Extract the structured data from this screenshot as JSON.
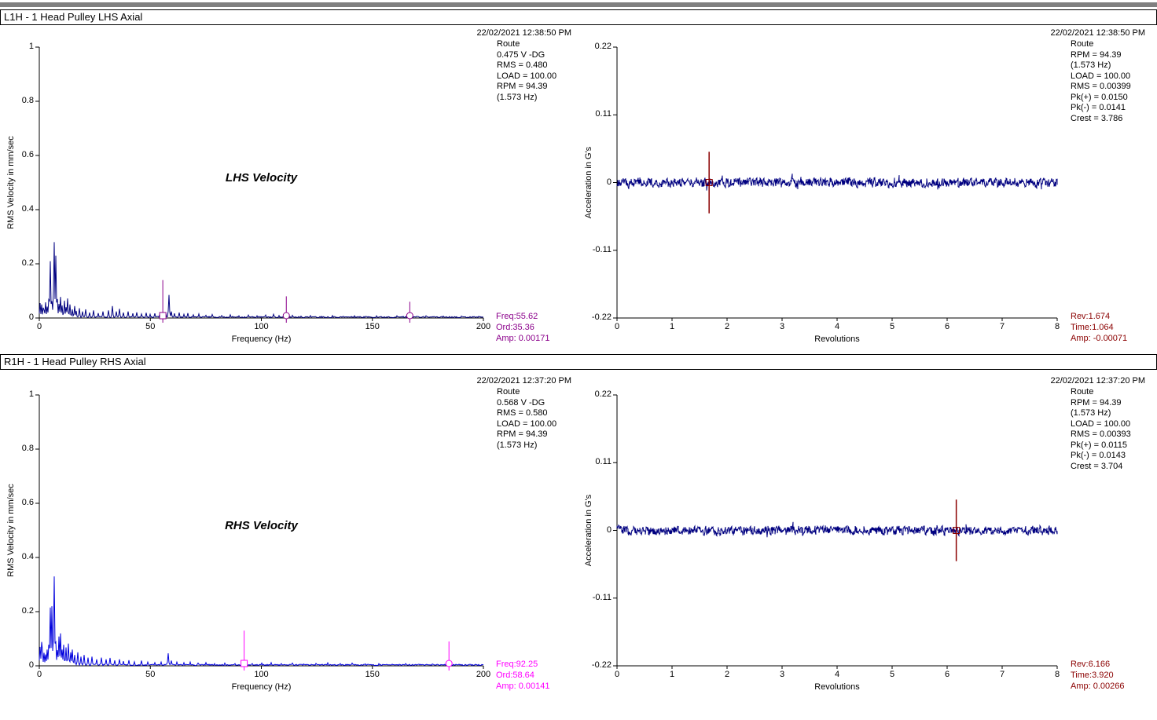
{
  "app": {
    "panels": [
      {
        "title": "L1H - 1 Head Pulley LHS Axial"
      },
      {
        "title": "R1H - 1 Head Pulley RHS Axial"
      }
    ]
  },
  "colors": {
    "spectrum_top_series": "#000080",
    "spectrum_bottom_series": "#0000DD",
    "waveform_series": "#000080",
    "cursor_top_left": "#8B008B",
    "cursor_bottom_left": "#FF00FF",
    "cursor_right": "#8B0000",
    "top_strip": "#808080"
  },
  "chart_data": [
    {
      "id": "lhs-velocity-spectrum",
      "type": "line",
      "kind": "spectrum",
      "panel": 0,
      "title": "LHS Velocity",
      "date": "22/02/2021 12:38:50 PM",
      "annotation": [
        "Route",
        "0.475 V -DG",
        "RMS = 0.480",
        "LOAD = 100.00",
        "RPM = 94.39",
        "(1.573 Hz)"
      ],
      "xlabel": "Frequency (Hz)",
      "ylabel": "RMS Velocity in mm/sec",
      "xlim": [
        0,
        200
      ],
      "ylim": [
        0,
        1
      ],
      "xticks": [
        0,
        50,
        100,
        150,
        200
      ],
      "yticks": [
        0,
        0.2,
        0.4,
        0.6,
        0.8,
        1
      ],
      "grid": false,
      "series_color": "#000080",
      "cursor_color": "#8B008B",
      "cursor_readout": [
        "Freq:55.62",
        "Ord:35.36",
        "Amp: 0.00171"
      ],
      "cursors": [
        {
          "x": 55.62,
          "marker": "square",
          "line_top": 0.14
        },
        {
          "x": 111.24,
          "marker": "circle",
          "line_top": 0.08
        },
        {
          "x": 166.86,
          "marker": "circle",
          "line_top": 0.06
        }
      ],
      "peaks": [
        [
          0.4,
          0.055
        ],
        [
          1,
          0.05
        ],
        [
          1.6,
          0.038
        ],
        [
          2.2,
          0.03
        ],
        [
          3,
          0.058
        ],
        [
          3.6,
          0.042
        ],
        [
          4.3,
          0.068
        ],
        [
          5.1,
          0.21
        ],
        [
          5.7,
          0.062
        ],
        [
          6.3,
          0.1
        ],
        [
          6.9,
          0.28
        ],
        [
          7.5,
          0.23
        ],
        [
          8.1,
          0.07
        ],
        [
          8.8,
          0.052
        ],
        [
          9.6,
          0.078
        ],
        [
          10.4,
          0.046
        ],
        [
          11.2,
          0.064
        ],
        [
          12,
          0.04
        ],
        [
          12.9,
          0.072
        ],
        [
          13.8,
          0.05
        ],
        [
          14.8,
          0.032
        ],
        [
          15.8,
          0.044
        ],
        [
          16.8,
          0.026
        ],
        [
          18,
          0.036
        ],
        [
          19.4,
          0.024
        ],
        [
          21,
          0.032
        ],
        [
          22.6,
          0.02
        ],
        [
          24.4,
          0.028
        ],
        [
          26.4,
          0.018
        ],
        [
          28.6,
          0.024
        ],
        [
          31,
          0.028
        ],
        [
          33,
          0.044
        ],
        [
          34.6,
          0.024
        ],
        [
          36.2,
          0.034
        ],
        [
          38,
          0.02
        ],
        [
          40,
          0.024
        ],
        [
          42,
          0.017
        ],
        [
          44,
          0.021
        ],
        [
          46,
          0.015
        ],
        [
          48,
          0.019
        ],
        [
          50,
          0.014
        ],
        [
          52,
          0.017
        ],
        [
          54,
          0.012
        ],
        [
          55.6,
          0.014
        ],
        [
          57,
          0.018
        ],
        [
          58.4,
          0.085
        ],
        [
          59.6,
          0.024
        ],
        [
          61,
          0.017
        ],
        [
          63,
          0.02
        ],
        [
          65,
          0.014
        ],
        [
          67,
          0.018
        ],
        [
          69.5,
          0.012
        ],
        [
          72,
          0.015
        ],
        [
          75,
          0.01
        ],
        [
          78,
          0.013
        ],
        [
          82,
          0.009
        ],
        [
          86,
          0.012
        ],
        [
          90,
          0.008
        ],
        [
          94,
          0.011
        ],
        [
          98,
          0.008
        ],
        [
          102,
          0.011
        ],
        [
          105.5,
          0.014
        ],
        [
          108,
          0.009
        ],
        [
          111.2,
          0.008
        ],
        [
          114,
          0.01
        ],
        [
          118,
          0.007
        ],
        [
          122,
          0.009
        ],
        [
          127,
          0.006
        ],
        [
          132,
          0.009
        ],
        [
          137,
          0.006
        ],
        [
          142,
          0.008
        ],
        [
          147,
          0.006
        ],
        [
          152,
          0.008
        ],
        [
          157,
          0.005
        ],
        [
          161,
          0.008
        ],
        [
          164,
          0.006
        ],
        [
          166.9,
          0.009
        ],
        [
          170,
          0.006
        ],
        [
          174,
          0.008
        ],
        [
          178,
          0.005
        ],
        [
          182,
          0.007
        ],
        [
          186,
          0.005
        ],
        [
          190,
          0.007
        ],
        [
          194,
          0.005
        ],
        [
          198,
          0.006
        ]
      ],
      "noise_base": 0.005,
      "noise_seed": 11
    },
    {
      "id": "lhs-acceleration-waveform",
      "type": "line",
      "kind": "waveform",
      "panel": 0,
      "title": "",
      "date": "22/02/2021 12:38:50 PM",
      "annotation": [
        "Route",
        "RPM = 94.39",
        "(1.573 Hz)",
        "LOAD = 100.00",
        "RMS = 0.00399",
        "Pk(+) = 0.0150",
        "Pk(-) = 0.0141",
        "Crest = 3.786"
      ],
      "xlabel": "Revolutions",
      "ylabel": "Acceleration in G's",
      "xlim": [
        0,
        8
      ],
      "ylim": [
        -0.22,
        0.22
      ],
      "xticks": [
        0,
        1,
        2,
        3,
        4,
        5,
        6,
        7,
        8
      ],
      "yticks": [
        -0.22,
        -0.11,
        0,
        0.11,
        0.22
      ],
      "grid": false,
      "series_color": "#000080",
      "cursor_color": "#8B0000",
      "cursor_readout": [
        "Rev:1.674",
        "Time:1.064",
        "Amp: -0.00071"
      ],
      "cursor": {
        "x": 1.674,
        "marker": "square",
        "span": 0.05
      },
      "noise_amp": 0.01,
      "noise_seed": 23
    },
    {
      "id": "rhs-velocity-spectrum",
      "type": "line",
      "kind": "spectrum",
      "panel": 1,
      "title": "RHS Velocity",
      "date": "22/02/2021 12:37:20 PM",
      "annotation": [
        "Route",
        "0.568 V -DG",
        "RMS = 0.580",
        "LOAD = 100.00",
        "RPM = 94.39",
        "(1.573 Hz)"
      ],
      "xlabel": "Frequency (Hz)",
      "ylabel": "RMS Velocity in mm/sec",
      "xlim": [
        0,
        200
      ],
      "ylim": [
        0,
        1
      ],
      "xticks": [
        0,
        50,
        100,
        150,
        200
      ],
      "yticks": [
        0,
        0.2,
        0.4,
        0.6,
        0.8,
        1
      ],
      "grid": false,
      "series_color": "#0000DD",
      "cursor_color": "#FF00FF",
      "cursor_readout": [
        "Freq:92.25",
        "Ord:58.64",
        "Amp: 0.00141"
      ],
      "cursors": [
        {
          "x": 92.25,
          "marker": "square",
          "line_top": 0.13
        },
        {
          "x": 184.5,
          "marker": "circle",
          "line_top": 0.09
        }
      ],
      "peaks": [
        [
          0.4,
          0.07
        ],
        [
          0.9,
          0.088
        ],
        [
          1.5,
          0.058
        ],
        [
          2.1,
          0.048
        ],
        [
          2.8,
          0.042
        ],
        [
          3.5,
          0.06
        ],
        [
          4.2,
          0.078
        ],
        [
          5,
          0.215
        ],
        [
          5.7,
          0.22
        ],
        [
          6.2,
          0.1
        ],
        [
          6.8,
          0.33
        ],
        [
          7.4,
          0.088
        ],
        [
          8,
          0.058
        ],
        [
          8.7,
          0.108
        ],
        [
          9.5,
          0.12
        ],
        [
          10.3,
          0.06
        ],
        [
          11.1,
          0.078
        ],
        [
          12,
          0.068
        ],
        [
          13,
          0.082
        ],
        [
          14,
          0.05
        ],
        [
          15,
          0.06
        ],
        [
          16.1,
          0.04
        ],
        [
          17.4,
          0.05
        ],
        [
          18.8,
          0.034
        ],
        [
          20.3,
          0.04
        ],
        [
          22,
          0.03
        ],
        [
          23.8,
          0.034
        ],
        [
          25.8,
          0.024
        ],
        [
          27.8,
          0.03
        ],
        [
          30,
          0.024
        ],
        [
          32,
          0.029
        ],
        [
          34,
          0.02
        ],
        [
          36,
          0.024
        ],
        [
          38,
          0.017
        ],
        [
          40.5,
          0.021
        ],
        [
          43,
          0.015
        ],
        [
          46,
          0.019
        ],
        [
          49,
          0.014
        ],
        [
          52,
          0.012
        ],
        [
          55,
          0.014
        ],
        [
          58,
          0.046
        ],
        [
          59.6,
          0.019
        ],
        [
          62,
          0.014
        ],
        [
          65,
          0.012
        ],
        [
          68,
          0.014
        ],
        [
          71.5,
          0.01
        ],
        [
          75,
          0.012
        ],
        [
          79,
          0.008
        ],
        [
          83.5,
          0.01
        ],
        [
          88,
          0.008
        ],
        [
          92.3,
          0.01
        ],
        [
          96,
          0.008
        ],
        [
          100,
          0.01
        ],
        [
          104.5,
          0.012
        ],
        [
          109,
          0.008
        ],
        [
          114,
          0.01
        ],
        [
          119,
          0.007
        ],
        [
          124.5,
          0.009
        ],
        [
          130,
          0.011
        ],
        [
          135.5,
          0.008
        ],
        [
          141,
          0.01
        ],
        [
          147,
          0.007
        ],
        [
          153,
          0.008
        ],
        [
          159,
          0.006
        ],
        [
          165,
          0.008
        ],
        [
          171,
          0.006
        ],
        [
          177,
          0.007
        ],
        [
          181,
          0.005
        ],
        [
          184.5,
          0.006
        ],
        [
          189,
          0.006
        ],
        [
          194,
          0.005
        ],
        [
          198,
          0.005
        ]
      ],
      "noise_base": 0.005,
      "noise_seed": 37
    },
    {
      "id": "rhs-acceleration-waveform",
      "type": "line",
      "kind": "waveform",
      "panel": 1,
      "title": "",
      "date": "22/02/2021 12:37:20 PM",
      "annotation": [
        "Route",
        "RPM = 94.39",
        "(1.573 Hz)",
        "LOAD = 100.00",
        "RMS = 0.00393",
        "Pk(+) = 0.0115",
        "Pk(-) = 0.0143",
        "Crest = 3.704"
      ],
      "xlabel": "Revolutions",
      "ylabel": "Acceleration in G's",
      "xlim": [
        0,
        8
      ],
      "ylim": [
        -0.22,
        0.22
      ],
      "xticks": [
        0,
        1,
        2,
        3,
        4,
        5,
        6,
        7,
        8
      ],
      "yticks": [
        -0.22,
        -0.11,
        0,
        0.11,
        0.22
      ],
      "grid": false,
      "series_color": "#000080",
      "cursor_color": "#8B0000",
      "cursor_readout": [
        "Rev:6.166",
        "Time:3.920",
        "Amp: 0.00266"
      ],
      "cursor": {
        "x": 6.166,
        "marker": "square",
        "span": 0.05
      },
      "noise_amp": 0.01,
      "noise_seed": 53
    }
  ]
}
